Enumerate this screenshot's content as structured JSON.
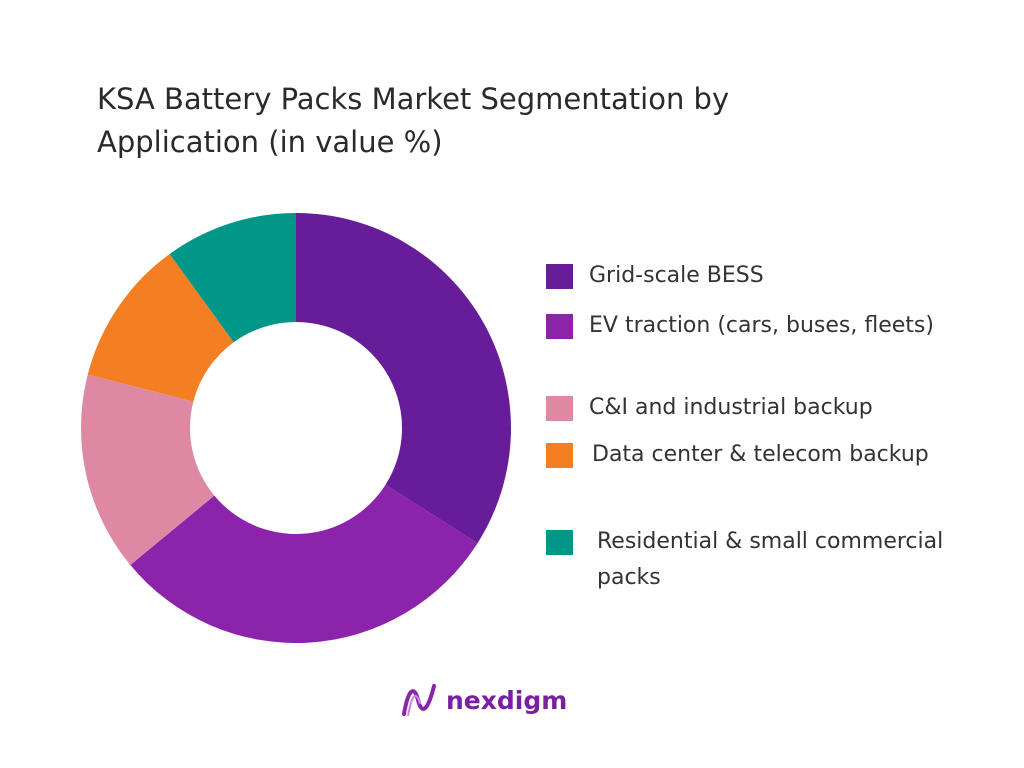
{
  "chart_data": {
    "type": "pie",
    "variant": "donut",
    "title": "KSA Battery Packs Market Segmentation by Application (in value %)",
    "categories": [
      "Grid-scale BESS",
      "EV traction (cars, buses, fleets)",
      "C&I and industrial backup",
      "Data center & telecom backup",
      "Residential & small commercial packs"
    ],
    "values": [
      34,
      30,
      15,
      11,
      10
    ],
    "colors": [
      "#671c99",
      "#8b24ab",
      "#de89a3",
      "#f47e22",
      "#009688"
    ],
    "legend_position": "right"
  },
  "logo": {
    "text": "nexdigm"
  }
}
